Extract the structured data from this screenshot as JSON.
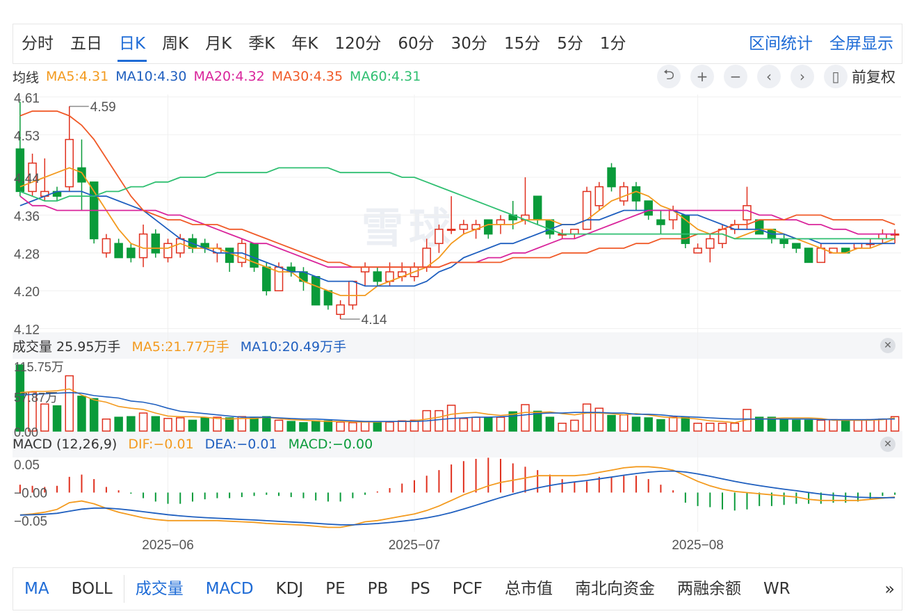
{
  "period_tabs": [
    "分时",
    "五日",
    "日K",
    "周K",
    "月K",
    "季K",
    "年K",
    "120分",
    "60分",
    "30分",
    "15分",
    "5分",
    "1分"
  ],
  "active_period": "日K",
  "right_links": [
    "区间统计",
    "全屏显示"
  ],
  "ma_header": {
    "label": "均线",
    "items": [
      {
        "text": "MA5:4.31",
        "color": "#f39a1e"
      },
      {
        "text": "MA10:4.30",
        "color": "#1f5fbf"
      },
      {
        "text": "MA20:4.32",
        "color": "#d9259b"
      },
      {
        "text": "MA30:4.35",
        "color": "#f05a28"
      },
      {
        "text": "MA60:4.31",
        "color": "#2fbf71"
      }
    ]
  },
  "tools": [
    {
      "icon": "undo-icon",
      "glyph": "⮌"
    },
    {
      "icon": "zoom-in-icon",
      "glyph": "+"
    },
    {
      "icon": "zoom-out-icon",
      "glyph": "−"
    },
    {
      "icon": "chevron-left-icon",
      "glyph": "‹"
    },
    {
      "icon": "chevron-right-icon",
      "glyph": "›"
    },
    {
      "icon": "candle-icon",
      "glyph": "▯"
    }
  ],
  "fuquan": "前复权",
  "volume_header": {
    "label": "成交量 25.95万手",
    "ma5": "MA5:21.77万手",
    "ma10": "MA10:20.49万手"
  },
  "macd_header": {
    "label": "MACD (12,26,9)",
    "dif": "DIF:−0.01",
    "dea": "DEA:−0.01",
    "macd": "MACD:−0.00"
  },
  "indicator_tabs": [
    {
      "label": "MA",
      "active": true
    },
    {
      "label": "BOLL",
      "active": false
    },
    {
      "label": "成交量",
      "active": true
    },
    {
      "label": "MACD",
      "active": true
    },
    {
      "label": "KDJ",
      "active": false
    },
    {
      "label": "PE",
      "active": false
    },
    {
      "label": "PB",
      "active": false
    },
    {
      "label": "PS",
      "active": false
    },
    {
      "label": "PCF",
      "active": false
    },
    {
      "label": "总市值",
      "active": false
    },
    {
      "label": "南北向资金",
      "active": false
    },
    {
      "label": "两融余额",
      "active": false
    },
    {
      "label": "WR",
      "active": false
    }
  ],
  "more_glyph": "»",
  "watermark": "雪球",
  "colors": {
    "up": "#e0301e",
    "down": "#0a9b3a",
    "accent": "#1e6bd6"
  },
  "chart_data": {
    "type": "candlestick",
    "price_axis": {
      "ticks": [
        4.61,
        4.53,
        4.44,
        4.36,
        4.28,
        4.2,
        4.12
      ],
      "ylim": [
        4.115,
        4.615
      ]
    },
    "x_axis_labels": [
      {
        "label": "2025−06",
        "index": 12
      },
      {
        "label": "2025−07",
        "index": 32
      },
      {
        "label": "2025−08",
        "index": 55
      }
    ],
    "annotations": [
      {
        "text": "4.59",
        "index": 4,
        "value": 4.59
      },
      {
        "text": "4.14",
        "index": 26,
        "value": 4.14
      }
    ],
    "candles": [
      [
        4.5,
        4.41,
        4.6,
        4.4
      ],
      [
        4.41,
        4.47,
        4.49,
        4.4
      ],
      [
        4.4,
        4.41,
        4.48,
        4.39
      ],
      [
        4.41,
        4.4,
        4.42,
        4.39
      ],
      [
        4.42,
        4.52,
        4.59,
        4.41
      ],
      [
        4.46,
        4.43,
        4.52,
        4.37
      ],
      [
        4.43,
        4.31,
        4.43,
        4.3
      ],
      [
        4.28,
        4.31,
        4.32,
        4.27
      ],
      [
        4.3,
        4.27,
        4.31,
        4.27
      ],
      [
        4.29,
        4.27,
        4.3,
        4.26
      ],
      [
        4.27,
        4.32,
        4.34,
        4.25
      ],
      [
        4.32,
        4.28,
        4.33,
        4.27
      ],
      [
        4.27,
        4.3,
        4.31,
        4.26
      ],
      [
        4.28,
        4.31,
        4.32,
        4.27
      ],
      [
        4.31,
        4.29,
        4.32,
        4.28
      ],
      [
        4.3,
        4.29,
        4.31,
        4.28
      ],
      [
        4.28,
        4.29,
        4.3,
        4.26
      ],
      [
        4.29,
        4.26,
        4.29,
        4.24
      ],
      [
        4.26,
        4.3,
        4.31,
        4.25
      ],
      [
        4.3,
        4.25,
        4.3,
        4.24
      ],
      [
        4.25,
        4.2,
        4.26,
        4.19
      ],
      [
        4.2,
        4.25,
        4.26,
        4.2
      ],
      [
        4.25,
        4.24,
        4.26,
        4.23
      ],
      [
        4.24,
        4.22,
        4.25,
        4.2
      ],
      [
        4.23,
        4.17,
        4.23,
        4.17
      ],
      [
        4.2,
        4.17,
        4.2,
        4.16
      ],
      [
        4.15,
        4.17,
        4.18,
        4.14
      ],
      [
        4.17,
        4.22,
        4.22,
        4.16
      ],
      [
        4.24,
        4.25,
        4.26,
        4.21
      ],
      [
        4.24,
        4.22,
        4.25,
        4.21
      ],
      [
        4.22,
        4.24,
        4.26,
        4.21
      ],
      [
        4.23,
        4.24,
        4.26,
        4.22
      ],
      [
        4.23,
        4.25,
        4.26,
        4.22
      ],
      [
        4.25,
        4.29,
        4.31,
        4.24
      ],
      [
        4.3,
        4.33,
        4.34,
        4.28
      ],
      [
        4.33,
        4.33,
        4.4,
        4.32
      ],
      [
        4.33,
        4.34,
        4.35,
        4.32
      ],
      [
        4.33,
        4.34,
        4.35,
        4.31
      ],
      [
        4.35,
        4.32,
        4.35,
        4.31
      ],
      [
        4.34,
        4.35,
        4.36,
        4.32
      ],
      [
        4.36,
        4.35,
        4.39,
        4.33
      ],
      [
        4.35,
        4.36,
        4.44,
        4.34
      ],
      [
        4.4,
        4.35,
        4.4,
        4.34
      ],
      [
        4.35,
        4.32,
        4.35,
        4.31
      ],
      [
        4.32,
        4.32,
        4.33,
        4.31
      ],
      [
        4.32,
        4.33,
        4.33,
        4.31
      ],
      [
        4.33,
        4.41,
        4.42,
        4.33
      ],
      [
        4.38,
        4.42,
        4.43,
        4.37
      ],
      [
        4.46,
        4.42,
        4.47,
        4.41
      ],
      [
        4.39,
        4.42,
        4.43,
        4.38
      ],
      [
        4.42,
        4.39,
        4.43,
        4.37
      ],
      [
        4.39,
        4.36,
        4.39,
        4.35
      ],
      [
        4.35,
        4.34,
        4.37,
        4.32
      ],
      [
        4.35,
        4.37,
        4.38,
        4.33
      ],
      [
        4.36,
        4.3,
        4.36,
        4.29
      ],
      [
        4.28,
        4.29,
        4.3,
        4.28
      ],
      [
        4.29,
        4.31,
        4.32,
        4.26
      ],
      [
        4.3,
        4.33,
        4.34,
        4.29
      ],
      [
        4.33,
        4.34,
        4.35,
        4.32
      ],
      [
        4.35,
        4.38,
        4.42,
        4.33
      ],
      [
        4.35,
        4.32,
        4.35,
        4.32
      ],
      [
        4.33,
        4.31,
        4.33,
        4.3
      ],
      [
        4.31,
        4.3,
        4.32,
        4.29
      ],
      [
        4.3,
        4.29,
        4.3,
        4.28
      ],
      [
        4.29,
        4.26,
        4.29,
        4.26
      ],
      [
        4.26,
        4.29,
        4.3,
        4.26
      ],
      [
        4.28,
        4.29,
        4.29,
        4.28
      ],
      [
        4.29,
        4.28,
        4.29,
        4.28
      ],
      [
        4.29,
        4.3,
        4.3,
        4.29
      ],
      [
        4.3,
        4.3,
        4.31,
        4.29
      ],
      [
        4.31,
        4.32,
        4.33,
        4.3
      ],
      [
        4.32,
        4.32,
        4.33,
        4.3
      ]
    ],
    "ma_series": [
      {
        "name": "MA5",
        "color": "#f39a1e",
        "values": [
          4.42,
          4.43,
          4.44,
          4.45,
          4.46,
          4.45,
          4.41,
          4.37,
          4.33,
          4.3,
          4.29,
          4.29,
          4.29,
          4.3,
          4.29,
          4.29,
          4.29,
          4.28,
          4.27,
          4.26,
          4.25,
          4.24,
          4.24,
          4.22,
          4.21,
          4.2,
          4.19,
          4.19,
          4.19,
          4.21,
          4.22,
          4.23,
          4.24,
          4.25,
          4.27,
          4.3,
          4.32,
          4.33,
          4.34,
          4.34,
          4.34,
          4.35,
          4.35,
          4.35,
          4.34,
          4.34,
          4.35,
          4.37,
          4.39,
          4.4,
          4.41,
          4.4,
          4.38,
          4.37,
          4.35,
          4.33,
          4.32,
          4.32,
          4.31,
          4.32,
          4.33,
          4.33,
          4.32,
          4.31,
          4.3,
          4.29,
          4.28,
          4.28,
          4.29,
          4.29,
          4.3,
          4.31
        ]
      },
      {
        "name": "MA10",
        "color": "#1f5fbf",
        "values": [
          4.38,
          4.39,
          4.4,
          4.41,
          4.41,
          4.41,
          4.4,
          4.4,
          4.39,
          4.38,
          4.37,
          4.35,
          4.33,
          4.31,
          4.3,
          4.29,
          4.28,
          4.28,
          4.28,
          4.27,
          4.26,
          4.25,
          4.24,
          4.24,
          4.23,
          4.22,
          4.22,
          4.22,
          4.21,
          4.21,
          4.21,
          4.21,
          4.21,
          4.22,
          4.24,
          4.25,
          4.27,
          4.28,
          4.29,
          4.3,
          4.3,
          4.31,
          4.32,
          4.33,
          4.34,
          4.34,
          4.35,
          4.35,
          4.36,
          4.37,
          4.37,
          4.37,
          4.37,
          4.37,
          4.36,
          4.36,
          4.35,
          4.34,
          4.33,
          4.33,
          4.33,
          4.32,
          4.32,
          4.31,
          4.31,
          4.3,
          4.3,
          4.3,
          4.3,
          4.3,
          4.3,
          4.3
        ]
      },
      {
        "name": "MA20",
        "color": "#d9259b",
        "values": [
          4.4,
          4.38,
          4.38,
          4.37,
          4.37,
          4.37,
          4.37,
          4.37,
          4.37,
          4.37,
          4.37,
          4.37,
          4.36,
          4.36,
          4.35,
          4.34,
          4.33,
          4.32,
          4.31,
          4.3,
          4.3,
          4.29,
          4.28,
          4.27,
          4.26,
          4.25,
          4.25,
          4.25,
          4.25,
          4.25,
          4.25,
          4.25,
          4.25,
          4.25,
          4.25,
          4.26,
          4.26,
          4.26,
          4.27,
          4.27,
          4.28,
          4.28,
          4.29,
          4.3,
          4.31,
          4.31,
          4.32,
          4.33,
          4.34,
          4.35,
          4.36,
          4.37,
          4.37,
          4.37,
          4.37,
          4.37,
          4.37,
          4.37,
          4.37,
          4.37,
          4.36,
          4.36,
          4.35,
          4.35,
          4.34,
          4.34,
          4.33,
          4.33,
          4.32,
          4.32,
          4.32,
          4.32
        ]
      },
      {
        "name": "MA30",
        "color": "#f05a28",
        "values": [
          4.57,
          4.58,
          4.58,
          4.58,
          4.57,
          4.55,
          4.52,
          4.48,
          4.44,
          4.4,
          4.37,
          4.36,
          4.35,
          4.35,
          4.34,
          4.34,
          4.34,
          4.33,
          4.33,
          4.32,
          4.31,
          4.3,
          4.29,
          4.28,
          4.27,
          4.26,
          4.26,
          4.25,
          4.25,
          4.25,
          4.25,
          4.25,
          4.25,
          4.25,
          4.25,
          4.26,
          4.26,
          4.26,
          4.26,
          4.26,
          4.27,
          4.27,
          4.27,
          4.27,
          4.28,
          4.28,
          4.28,
          4.29,
          4.29,
          4.29,
          4.3,
          4.3,
          4.31,
          4.31,
          4.31,
          4.32,
          4.32,
          4.33,
          4.34,
          4.34,
          4.35,
          4.35,
          4.35,
          4.36,
          4.36,
          4.36,
          4.35,
          4.35,
          4.35,
          4.35,
          4.35,
          4.34
        ]
      },
      {
        "name": "MA60",
        "color": "#2fbf71",
        "values": [
          4.41,
          4.4,
          4.39,
          4.39,
          4.4,
          4.4,
          4.4,
          4.41,
          4.41,
          4.42,
          4.42,
          4.43,
          4.43,
          4.44,
          4.44,
          4.44,
          4.45,
          4.45,
          4.45,
          4.45,
          4.45,
          4.46,
          4.46,
          4.46,
          4.46,
          4.46,
          4.45,
          4.45,
          4.45,
          4.45,
          4.45,
          4.44,
          4.44,
          4.43,
          4.42,
          4.41,
          4.4,
          4.39,
          4.38,
          4.37,
          4.36,
          4.35,
          4.34,
          4.33,
          4.32,
          4.32,
          4.32,
          4.32,
          4.32,
          4.32,
          4.32,
          4.32,
          4.32,
          4.32,
          4.32,
          4.32,
          4.32,
          4.32,
          4.31,
          4.31,
          4.31,
          4.31,
          4.31,
          4.31,
          4.31,
          4.31,
          4.31,
          4.31,
          4.31,
          4.31,
          4.31,
          4.31
        ]
      }
    ],
    "volume_axis": {
      "ticks": [
        "115.75万",
        "57.87万",
        "0.00"
      ],
      "ylim": [
        0,
        115.75
      ]
    },
    "volume": [
      110,
      65,
      45,
      42,
      92,
      58,
      54,
      20,
      23,
      24,
      30,
      24,
      21,
      22,
      18,
      22,
      23,
      22,
      24,
      23,
      24,
      18,
      16,
      14,
      17,
      17,
      15,
      14,
      16,
      15,
      15,
      17,
      18,
      34,
      34,
      43,
      21,
      23,
      23,
      23,
      32,
      44,
      33,
      23,
      13,
      18,
      45,
      38,
      26,
      27,
      23,
      22,
      19,
      23,
      23,
      13,
      13,
      13,
      13,
      36,
      23,
      23,
      19,
      18,
      18,
      18,
      19,
      18,
      18,
      19,
      20,
      24
    ],
    "volume_ma": [
      {
        "name": "MA5",
        "color": "#f39a1e",
        "values": [
          64,
          66,
          66,
          67,
          70,
          60,
          52,
          48,
          41,
          38,
          36,
          30,
          25,
          24,
          24,
          23,
          21,
          20,
          21,
          21,
          23,
          21,
          19,
          18,
          17,
          16,
          16,
          15,
          15,
          15,
          16,
          16,
          17,
          20,
          23,
          28,
          30,
          31,
          28,
          26,
          28,
          31,
          31,
          32,
          29,
          27,
          30,
          30,
          29,
          27,
          29,
          27,
          24,
          22,
          22,
          20,
          17,
          16,
          14,
          19,
          20,
          21,
          22,
          22,
          22,
          21,
          18,
          18,
          18,
          18,
          19,
          22
        ]
      },
      {
        "name": "MA10",
        "color": "#1f5fbf",
        "values": [
          60,
          61,
          62,
          63,
          64,
          63,
          59,
          57,
          55,
          50,
          48,
          44,
          38,
          33,
          31,
          29,
          27,
          25,
          23,
          23,
          23,
          22,
          21,
          20,
          20,
          19,
          18,
          17,
          16,
          16,
          16,
          16,
          16,
          17,
          19,
          21,
          22,
          23,
          23,
          24,
          25,
          27,
          29,
          30,
          30,
          31,
          31,
          31,
          30,
          30,
          28,
          28,
          27,
          25,
          24,
          23,
          22,
          21,
          20,
          20,
          20,
          20,
          20,
          20,
          20,
          19,
          19,
          19,
          19,
          19,
          20,
          20
        ]
      }
    ],
    "macd_axis": {
      "ticks": [
        "0.05",
        "−0.00",
        "−0.05"
      ],
      "ylim": [
        -0.07,
        0.06
      ]
    },
    "macd_hist": [
      0.014,
      0.012,
      0.01,
      0.012,
      0.028,
      0.032,
      0.024,
      0.01,
      0.004,
      -0.002,
      -0.01,
      -0.016,
      -0.02,
      -0.02,
      -0.016,
      -0.012,
      -0.01,
      -0.01,
      -0.008,
      -0.006,
      -0.004,
      -0.006,
      -0.008,
      -0.01,
      -0.014,
      -0.016,
      -0.016,
      -0.01,
      -0.004,
      0.002,
      0.008,
      0.016,
      0.022,
      0.03,
      0.04,
      0.05,
      0.056,
      0.06,
      0.062,
      0.06,
      0.052,
      0.046,
      0.04,
      0.032,
      0.024,
      0.018,
      0.02,
      0.028,
      0.028,
      0.03,
      0.03,
      0.024,
      0.014,
      0.004,
      -0.018,
      -0.024,
      -0.026,
      -0.03,
      -0.032,
      -0.03,
      -0.024,
      -0.024,
      -0.022,
      -0.02,
      -0.02,
      -0.02,
      -0.018,
      -0.018,
      -0.016,
      -0.012,
      -0.006,
      -0.004
    ],
    "dif": [
      -0.04,
      -0.038,
      -0.035,
      -0.03,
      -0.018,
      -0.015,
      -0.02,
      -0.028,
      -0.035,
      -0.04,
      -0.045,
      -0.048,
      -0.05,
      -0.05,
      -0.05,
      -0.05,
      -0.05,
      -0.051,
      -0.052,
      -0.053,
      -0.055,
      -0.056,
      -0.057,
      -0.058,
      -0.06,
      -0.062,
      -0.062,
      -0.058,
      -0.052,
      -0.05,
      -0.046,
      -0.042,
      -0.038,
      -0.032,
      -0.024,
      -0.014,
      -0.004,
      0.004,
      0.012,
      0.018,
      0.022,
      0.026,
      0.03,
      0.03,
      0.03,
      0.03,
      0.032,
      0.036,
      0.04,
      0.044,
      0.046,
      0.046,
      0.044,
      0.04,
      0.03,
      0.02,
      0.012,
      0.006,
      0.002,
      0.0,
      -0.002,
      -0.004,
      -0.006,
      -0.008,
      -0.012,
      -0.014,
      -0.014,
      -0.014,
      -0.014,
      -0.012,
      -0.01,
      -0.008
    ]
  }
}
